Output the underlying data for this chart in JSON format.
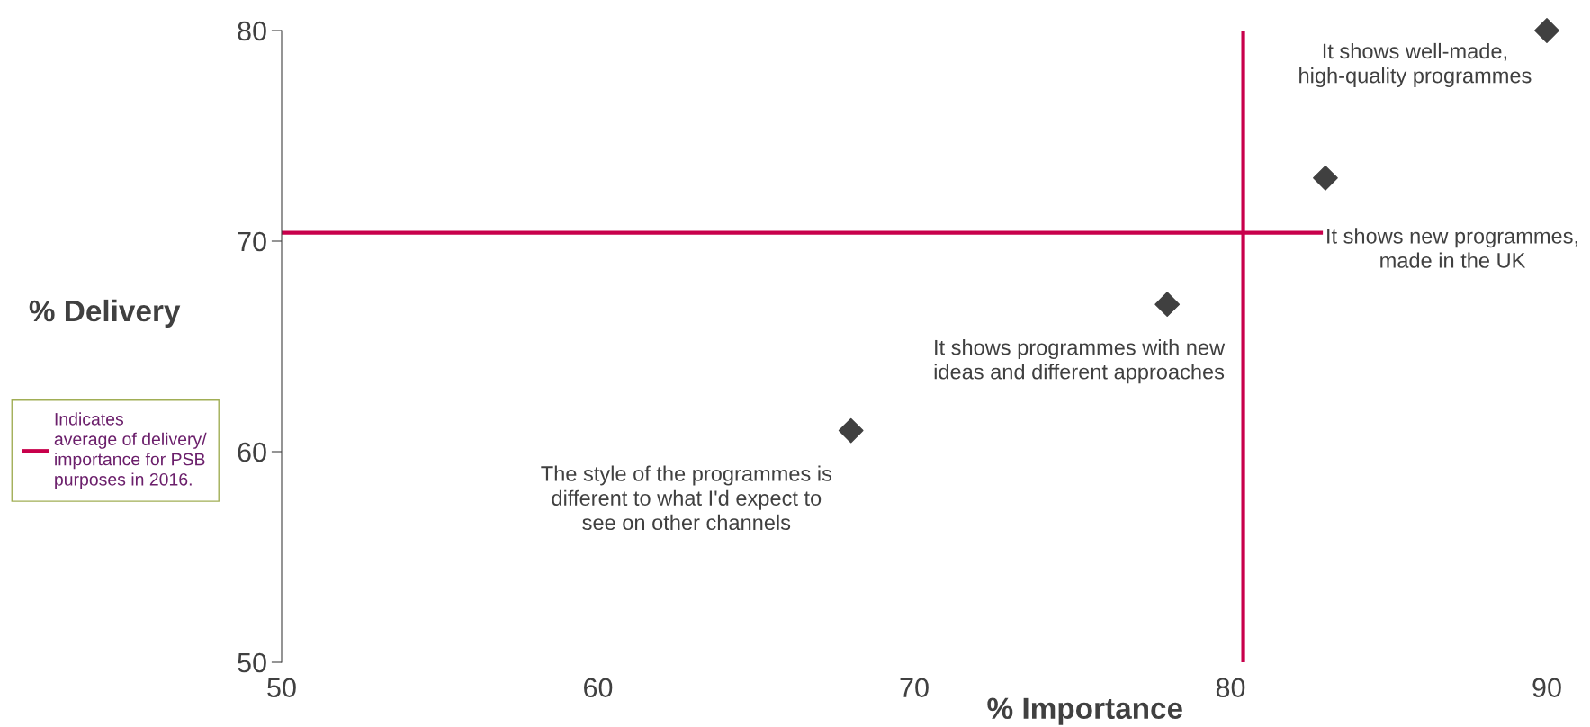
{
  "chart_data": {
    "type": "scatter",
    "xlabel": "% Importance",
    "ylabel": "% Delivery",
    "x": [
      68,
      78,
      83,
      90
    ],
    "series": [
      {
        "color": "#404040",
        "values": [
          61,
          67,
          73,
          80
        ]
      }
    ],
    "marker": "diamond",
    "xlim": [
      50,
      90
    ],
    "xticks": [
      50,
      60,
      70,
      80,
      90
    ],
    "ylim": [
      50,
      80
    ],
    "yticks": [
      50,
      60,
      70,
      80
    ],
    "grid": false,
    "legend": "left",
    "ref_lines": [
      {
        "axis": "x",
        "value": 80.4,
        "color": "#c8004b"
      },
      {
        "axis": "y",
        "value": 70.4,
        "color": "#c8004b",
        "label": "Indicates\naverage of delivery/\nimportance for PSB\npurposes in 2016."
      }
    ],
    "annotations": [
      {
        "text": "The style of the programmes is\ndifferent to what I'd expect to\nsee on other channels",
        "x": 68,
        "y": 61
      },
      {
        "text": "It shows programmes with new\nideas and different approaches",
        "x": 78,
        "y": 67
      },
      {
        "text": "It shows new programmes,\nmade in the UK",
        "x": 83,
        "y": 73
      },
      {
        "text": "It shows well-made,\nhigh-quality programmes",
        "x": 90,
        "y": 80
      }
    ]
  }
}
